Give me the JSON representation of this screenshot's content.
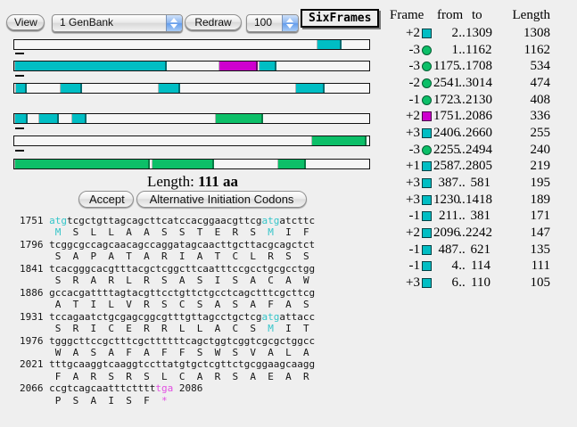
{
  "toolbar": {
    "view_label": "View",
    "genbank_select_value": "1 GenBank",
    "redraw_label": "Redraw",
    "scale_select_value": "100",
    "sixframes_label": "SixFrames"
  },
  "colors": {
    "teal": "#00BEC4",
    "green": "#0CBF68",
    "magenta": "#CE00CE",
    "seq_start_codon": "#35C5C9",
    "seq_stop_codon": "#E24FE2"
  },
  "frame_bars": [
    {
      "frame": "+1",
      "segments": [
        {
          "from": 2587,
          "to": 2805,
          "color": "teal"
        }
      ]
    },
    {
      "frame": "+2",
      "segments": [
        {
          "from": 2,
          "to": 1309,
          "color": "teal"
        },
        {
          "from": 1751,
          "to": 2086,
          "color": "magenta"
        },
        {
          "from": 2096,
          "to": 2242,
          "color": "teal"
        }
      ]
    },
    {
      "frame": "+3",
      "segments": [
        {
          "from": 6,
          "to": 110,
          "color": "teal"
        },
        {
          "from": 387,
          "to": 581,
          "color": "teal"
        },
        {
          "from": 1230,
          "to": 1418,
          "color": "teal"
        },
        {
          "from": 2406,
          "to": 2660,
          "color": "teal"
        }
      ]
    },
    {
      "frame": "-1",
      "segments": [
        {
          "from": 4,
          "to": 114,
          "color": "teal"
        },
        {
          "from": 211,
          "to": 381,
          "color": "teal"
        },
        {
          "from": 487,
          "to": 621,
          "color": "teal"
        },
        {
          "from": 1723,
          "to": 2130,
          "color": "green"
        }
      ]
    },
    {
      "frame": "-2",
      "segments": [
        {
          "from": 2541,
          "to": 3014,
          "color": "green"
        }
      ]
    },
    {
      "frame": "-3",
      "segments": [
        {
          "from": 1,
          "to": 1162,
          "color": "green"
        },
        {
          "from": 1175,
          "to": 1708,
          "color": "green"
        },
        {
          "from": 2255,
          "to": 2494,
          "color": "green"
        }
      ]
    }
  ],
  "orf_table": {
    "headers": {
      "frame": "Frame",
      "from": "from",
      "to": "to",
      "length": "Length"
    },
    "range_sep": "..",
    "rows": [
      {
        "frame": "+2",
        "icon": "square-teal",
        "from": "2",
        "to": "1309",
        "length": "1308"
      },
      {
        "frame": "-3",
        "icon": "circle-green",
        "from": "1",
        "to": "1162",
        "length": "1162"
      },
      {
        "frame": "-3",
        "icon": "circle-green",
        "from": "1175",
        "to": "1708",
        "length": "534"
      },
      {
        "frame": "-2",
        "icon": "circle-green",
        "from": "2541",
        "to": "3014",
        "length": "474"
      },
      {
        "frame": "-1",
        "icon": "circle-green",
        "from": "1723",
        "to": "2130",
        "length": "408"
      },
      {
        "frame": "+2",
        "icon": "square-magenta",
        "from": "1751",
        "to": "2086",
        "length": "336"
      },
      {
        "frame": "+3",
        "icon": "square-teal",
        "from": "2406",
        "to": "2660",
        "length": "255"
      },
      {
        "frame": "-3",
        "icon": "circle-green",
        "from": "2255",
        "to": "2494",
        "length": "240"
      },
      {
        "frame": "+1",
        "icon": "square-teal",
        "from": "2587",
        "to": "2805",
        "length": "219"
      },
      {
        "frame": "+3",
        "icon": "square-teal",
        "from": "387",
        "to": "581",
        "length": "195"
      },
      {
        "frame": "+3",
        "icon": "square-teal",
        "from": "1230",
        "to": "1418",
        "length": "189"
      },
      {
        "frame": "-1",
        "icon": "square-teal",
        "from": "211",
        "to": "381",
        "length": "171"
      },
      {
        "frame": "+2",
        "icon": "square-teal",
        "from": "2096",
        "to": "2242",
        "length": "147"
      },
      {
        "frame": "-1",
        "icon": "square-teal",
        "from": "487",
        "to": "621",
        "length": "135"
      },
      {
        "frame": "-1",
        "icon": "square-teal",
        "from": "4",
        "to": "114",
        "length": "111"
      },
      {
        "frame": "+3",
        "icon": "square-teal",
        "from": "6",
        "to": "110",
        "length": "105"
      }
    ]
  },
  "selection": {
    "length_label": "Length:",
    "length_value": "111 aa"
  },
  "actions": {
    "accept_label": "Accept",
    "alt_init_label": "Alternative Initiation Codons"
  },
  "sequence_panel": {
    "lines": [
      {
        "num": "1751",
        "seq": [
          {
            "t": "atg",
            "c": "start"
          },
          {
            "t": "tcgctgttagcagcttcatccacggaacgttcg",
            "c": ""
          },
          {
            "t": "atg",
            "c": "start"
          },
          {
            "t": "atcttc",
            "c": ""
          }
        ],
        "aa": [
          "M",
          "S",
          "L",
          "L",
          "A",
          "A",
          "S",
          "S",
          "T",
          "E",
          "R",
          "S",
          "M",
          "I",
          "F"
        ],
        "aa_hl": {
          "0": "start",
          "12": "start"
        }
      },
      {
        "num": "1796",
        "seq": [
          {
            "t": "tcggcgccagcaacagccaggatagcaacttgcttacgcagctct",
            "c": ""
          }
        ],
        "aa": [
          "S",
          "A",
          "P",
          "A",
          "T",
          "A",
          "R",
          "I",
          "A",
          "T",
          "C",
          "L",
          "R",
          "S",
          "S"
        ],
        "aa_hl": {}
      },
      {
        "num": "1841",
        "seq": [
          {
            "t": "tcacgggcacgtttacgctcggcttcaatttccgcctgcgcctgg",
            "c": ""
          }
        ],
        "aa": [
          "S",
          "R",
          "A",
          "R",
          "L",
          "R",
          "S",
          "A",
          "S",
          "I",
          "S",
          "A",
          "C",
          "A",
          "W"
        ],
        "aa_hl": {}
      },
      {
        "num": "1886",
        "seq": [
          {
            "t": "gccacgattttagtacgttcctgttctgcctcagctttcgcttcg",
            "c": ""
          }
        ],
        "aa": [
          "A",
          "T",
          "I",
          "L",
          "V",
          "R",
          "S",
          "C",
          "S",
          "A",
          "S",
          "A",
          "F",
          "A",
          "S"
        ],
        "aa_hl": {}
      },
      {
        "num": "1931",
        "seq": [
          {
            "t": "tccagaatctgcgagcggcgtttgttagcctgctcg",
            "c": ""
          },
          {
            "t": "atg",
            "c": "start"
          },
          {
            "t": "attacc",
            "c": ""
          }
        ],
        "aa": [
          "S",
          "R",
          "I",
          "C",
          "E",
          "R",
          "R",
          "L",
          "L",
          "A",
          "C",
          "S",
          "M",
          "I",
          "T"
        ],
        "aa_hl": {
          "12": "start"
        }
      },
      {
        "num": "1976",
        "seq": [
          {
            "t": "tgggcttccgctttcgcttttttcagctggtcggtcgcgctggcc",
            "c": ""
          }
        ],
        "aa": [
          "W",
          "A",
          "S",
          "A",
          "F",
          "A",
          "F",
          "F",
          "S",
          "W",
          "S",
          "V",
          "A",
          "L",
          "A"
        ],
        "aa_hl": {}
      },
      {
        "num": "2021",
        "seq": [
          {
            "t": "tttgcaaggtcaaggtccttatgtgctcgttctgcggaagcaagg",
            "c": ""
          }
        ],
        "aa": [
          "F",
          "A",
          "R",
          "S",
          "R",
          "S",
          "L",
          "C",
          "A",
          "R",
          "S",
          "A",
          "E",
          "A",
          "R"
        ],
        "aa_hl": {}
      },
      {
        "num": "2066",
        "seq": [
          {
            "t": "ccgtcagcaatttctttt",
            "c": ""
          },
          {
            "t": "tga",
            "c": "stop"
          }
        ],
        "suffix": " 2086",
        "aa": [
          "P",
          "S",
          "A",
          "I",
          "S",
          "F",
          "*"
        ],
        "aa_hl": {
          "6": "stop"
        }
      }
    ]
  }
}
